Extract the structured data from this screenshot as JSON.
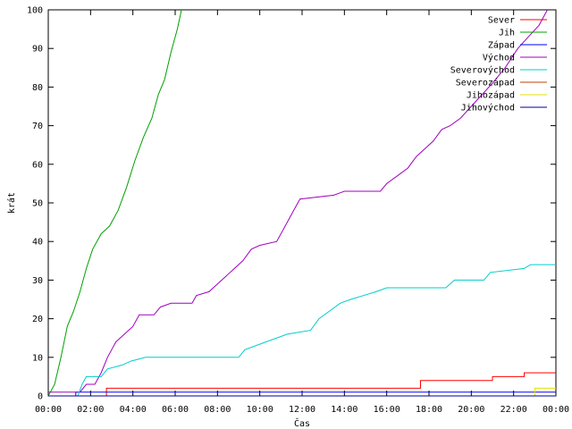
{
  "chart_data": {
    "type": "line",
    "xlabel": "Čas",
    "ylabel": "krát",
    "xlim": [
      0,
      24
    ],
    "ylim": [
      0,
      100
    ],
    "x_ticks": [
      "00:00",
      "02:00",
      "04:00",
      "06:00",
      "08:00",
      "10:00",
      "12:00",
      "14:00",
      "16:00",
      "18:00",
      "20:00",
      "22:00",
      "00:00"
    ],
    "y_ticks": [
      "0",
      "10",
      "20",
      "30",
      "40",
      "50",
      "60",
      "70",
      "80",
      "90",
      "100"
    ],
    "grid": false,
    "legend_position": "top-right",
    "series": [
      {
        "name": "Sever",
        "color": "#ff0000",
        "points": [
          [
            0,
            0
          ],
          [
            2.75,
            0
          ],
          [
            2.75,
            2
          ],
          [
            17.6,
            2
          ],
          [
            17.6,
            4
          ],
          [
            21,
            4
          ],
          [
            21,
            5
          ],
          [
            22.5,
            5
          ],
          [
            22.5,
            6
          ],
          [
            24,
            6
          ]
        ]
      },
      {
        "name": "Jih",
        "color": "#00a000",
        "points": [
          [
            0,
            0
          ],
          [
            0.3,
            3
          ],
          [
            0.6,
            10
          ],
          [
            0.9,
            18
          ],
          [
            1.2,
            22
          ],
          [
            1.5,
            27
          ],
          [
            1.8,
            33
          ],
          [
            2.1,
            38
          ],
          [
            2.5,
            42
          ],
          [
            2.9,
            44
          ],
          [
            3.3,
            48
          ],
          [
            3.7,
            54
          ],
          [
            4.1,
            61
          ],
          [
            4.5,
            67
          ],
          [
            4.9,
            72
          ],
          [
            5.2,
            78
          ],
          [
            5.5,
            82
          ],
          [
            5.8,
            89
          ],
          [
            6.1,
            95
          ],
          [
            6.3,
            100
          ]
        ]
      },
      {
        "name": "Západ",
        "color": "#0000ff",
        "points": [
          [
            0,
            0
          ],
          [
            1.3,
            0
          ],
          [
            1.3,
            1
          ],
          [
            24,
            1
          ]
        ]
      },
      {
        "name": "Východ",
        "color": "#a000c0",
        "points": [
          [
            0,
            1
          ],
          [
            1.5,
            1
          ],
          [
            1.8,
            3
          ],
          [
            2.2,
            3
          ],
          [
            2.5,
            6
          ],
          [
            2.8,
            10
          ],
          [
            3.2,
            14
          ],
          [
            3.6,
            16
          ],
          [
            4.0,
            18
          ],
          [
            4.3,
            21
          ],
          [
            5.0,
            21
          ],
          [
            5.3,
            23
          ],
          [
            5.8,
            24
          ],
          [
            6.8,
            24
          ],
          [
            7.0,
            26
          ],
          [
            7.6,
            27
          ],
          [
            8.0,
            29
          ],
          [
            8.4,
            31
          ],
          [
            8.8,
            33
          ],
          [
            9.2,
            35
          ],
          [
            9.6,
            38
          ],
          [
            10.0,
            39
          ],
          [
            10.8,
            40
          ],
          [
            11.2,
            44
          ],
          [
            11.6,
            48
          ],
          [
            11.9,
            51
          ],
          [
            13.5,
            52
          ],
          [
            14.0,
            53
          ],
          [
            15.7,
            53
          ],
          [
            16.0,
            55
          ],
          [
            16.5,
            57
          ],
          [
            17.0,
            59
          ],
          [
            17.4,
            62
          ],
          [
            17.8,
            64
          ],
          [
            18.2,
            66
          ],
          [
            18.6,
            69
          ],
          [
            19.0,
            70
          ],
          [
            19.5,
            72
          ],
          [
            20.0,
            75
          ],
          [
            20.5,
            78
          ],
          [
            21.0,
            81
          ],
          [
            21.6,
            85
          ],
          [
            22.2,
            90
          ],
          [
            22.7,
            93
          ],
          [
            23.2,
            96
          ],
          [
            23.6,
            100
          ]
        ]
      },
      {
        "name": "Severovýchod",
        "color": "#00cccc",
        "points": [
          [
            0,
            0
          ],
          [
            1.4,
            0
          ],
          [
            1.6,
            3
          ],
          [
            1.8,
            5
          ],
          [
            2.5,
            5
          ],
          [
            2.8,
            7
          ],
          [
            3.5,
            8
          ],
          [
            3.9,
            9
          ],
          [
            4.6,
            10
          ],
          [
            9.0,
            10
          ],
          [
            9.3,
            12
          ],
          [
            10.3,
            14
          ],
          [
            11.3,
            16
          ],
          [
            12.4,
            17
          ],
          [
            12.8,
            20
          ],
          [
            13.3,
            22
          ],
          [
            13.8,
            24
          ],
          [
            14.3,
            25
          ],
          [
            14.9,
            26
          ],
          [
            15.5,
            27
          ],
          [
            16.0,
            28
          ],
          [
            18.8,
            28
          ],
          [
            19.2,
            30
          ],
          [
            20.6,
            30
          ],
          [
            20.9,
            32
          ],
          [
            22.5,
            33
          ],
          [
            22.8,
            34
          ],
          [
            24,
            34
          ]
        ]
      },
      {
        "name": "Severozápad",
        "color": "#c04000",
        "points": [
          [
            0,
            0
          ],
          [
            24,
            0
          ]
        ]
      },
      {
        "name": "Jihozápad",
        "color": "#e0e000",
        "points": [
          [
            0,
            0
          ],
          [
            23.0,
            0
          ],
          [
            23.0,
            2
          ],
          [
            24,
            2
          ]
        ]
      },
      {
        "name": "Jihovýchod",
        "color": "#000090",
        "points": [
          [
            0,
            0
          ],
          [
            24,
            0
          ]
        ]
      }
    ]
  }
}
